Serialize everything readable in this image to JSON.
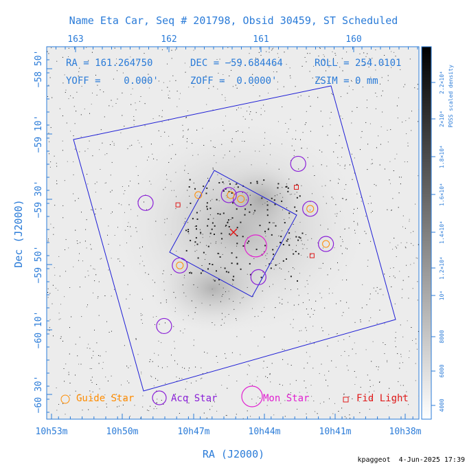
{
  "chart_data": {
    "type": "scatter",
    "title": "Name Eta Car, Seq # 201798, Obsid 30459, ST Scheduled",
    "xlabel": "RA (J2000)",
    "ylabel": "Dec (J2000)",
    "info": {
      "ra": "RA = 161.264750",
      "dec": "DEC = −59.684464",
      "roll": "ROLL = 254.0101",
      "yoff": "YOFF =    0.000'",
      "zoff": "ZOFF =  0.0000'",
      "zsim": "ZSIM = 0 mm"
    },
    "top_ticks": [
      "163",
      "162",
      "161",
      "160"
    ],
    "bottom_ticks": [
      "10h53m",
      "10h50m",
      "10h47m",
      "10h44m",
      "10h41m",
      "10h38m"
    ],
    "left_ticks": [
      "−58 50'",
      "−59 10'",
      "−59 30'",
      "−59 50'",
      "−60 10'",
      "−60 30'"
    ],
    "colorbar": {
      "label": "POSS scaled density",
      "ticks": [
        "4000",
        "6000",
        "8000",
        "10⁴",
        "1.2×10⁴",
        "1.4×10⁴",
        "1.6×10⁴",
        "1.8×10⁴",
        "2×10⁴",
        "2.2×10⁴"
      ]
    },
    "legend": {
      "guide": "Guide Star",
      "acq": "Acq Star",
      "mon": "Mon Star",
      "fid": "Fid Light"
    },
    "colors": {
      "axis": "#2a7bd8",
      "guide": "#ff8c00",
      "acq": "#8a1fd8",
      "mon": "#e020d0",
      "fid": "#e01818",
      "fov": "#1c1cd6"
    },
    "guide_stars": [
      [
        161.68,
        -59.48
      ],
      [
        161.22,
        -59.5
      ],
      [
        161.33,
        -59.48
      ],
      [
        160.47,
        -59.55
      ],
      [
        161.88,
        -59.84
      ],
      [
        160.3,
        -59.73
      ]
    ],
    "acq_stars": [
      [
        161.22,
        -59.5
      ],
      [
        160.6,
        -59.32
      ],
      [
        161.35,
        -59.48
      ],
      [
        161.88,
        -59.84
      ],
      [
        160.3,
        -59.73
      ],
      [
        162.25,
        -59.52
      ],
      [
        160.47,
        -59.55
      ],
      [
        162.05,
        -60.15
      ],
      [
        161.03,
        -59.9
      ]
    ],
    "mon_stars": [
      [
        161.06,
        -59.74
      ]
    ],
    "fid_lights": [
      [
        161.9,
        -59.53
      ],
      [
        160.62,
        -59.44
      ],
      [
        160.45,
        -59.79
      ]
    ],
    "signature": "kpaggeot  4-Jun-2025 17:39"
  }
}
